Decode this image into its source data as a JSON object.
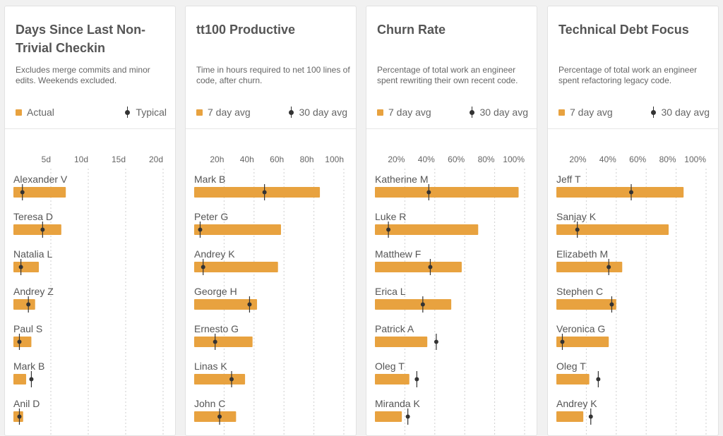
{
  "colors": {
    "bar": "#e8a23f",
    "marker": "#333333",
    "grid": "#cfcfcf",
    "tick_text": "#666666",
    "label_text": "#555555"
  },
  "cards": [
    {
      "title": "Days Since Last Non-Trivial Checkin",
      "description": "Excludes merge commits and minor edits. Weekends excluded.",
      "legend": {
        "bar": "Actual",
        "marker": "Typical"
      }
    },
    {
      "title": "tt100 Productive",
      "description": "Time in hours required to net 100 lines of code, after churn.",
      "legend": {
        "bar": "7 day avg",
        "marker": "30 day avg"
      }
    },
    {
      "title": "Churn Rate",
      "description": "Percentage of total work an engineer spent rewriting their own recent code.",
      "legend": {
        "bar": "7 day avg",
        "marker": "30 day avg"
      }
    },
    {
      "title": "Technical Debt Focus",
      "description": "Percentage of total work an engineer spent refactoring legacy code.",
      "legend": {
        "bar": "7 day avg",
        "marker": "30 day avg"
      }
    }
  ],
  "chart_data": [
    {
      "type": "bar",
      "title": "Days Since Last Non-Trivial Checkin",
      "xlim": [
        0,
        20
      ],
      "ticks": [
        5,
        10,
        15,
        20
      ],
      "tick_labels": [
        "5d",
        "10d",
        "15d",
        "20d"
      ],
      "categories": [
        "Alexander V",
        "Teresa D",
        "Natalia L",
        "Andrey Z",
        "Paul S",
        "Mark B",
        "Anil D"
      ],
      "series": [
        {
          "name": "Actual",
          "values": [
            7,
            6.4,
            3.4,
            2.9,
            2.4,
            1.7,
            1.3
          ]
        },
        {
          "name": "Typical",
          "values": [
            1.2,
            3.9,
            1.0,
            2.0,
            0.8,
            2.4,
            0.8
          ]
        }
      ]
    },
    {
      "type": "bar",
      "title": "tt100 Productive",
      "xlim": [
        0,
        100
      ],
      "ticks": [
        20,
        40,
        60,
        80,
        100
      ],
      "tick_labels": [
        "20h",
        "40h",
        "60h",
        "80h",
        "100h"
      ],
      "categories": [
        "Mark B",
        "Peter G",
        "Andrey K",
        "George H",
        "Ernesto G",
        "Linas K",
        "John C"
      ],
      "series": [
        {
          "name": "7 day avg",
          "values": [
            84,
            58,
            56,
            42,
            39,
            34,
            28
          ]
        },
        {
          "name": "30 day avg",
          "values": [
            47,
            4,
            6,
            37,
            14,
            25,
            17
          ]
        }
      ]
    },
    {
      "type": "bar",
      "title": "Churn Rate",
      "xlim": [
        0,
        100
      ],
      "ticks": [
        20,
        40,
        60,
        80,
        100
      ],
      "tick_labels": [
        "20%",
        "40%",
        "60%",
        "80%",
        "100%"
      ],
      "categories": [
        "Katherine M",
        "Luke R",
        "Matthew F",
        "Erica L",
        "Patrick A",
        "Oleg T",
        "Miranda K"
      ],
      "series": [
        {
          "name": "7 day avg",
          "values": [
            96,
            69,
            58,
            51,
            35,
            23,
            18
          ]
        },
        {
          "name": "30 day avg",
          "values": [
            36,
            9,
            37,
            32,
            41,
            28,
            22
          ]
        }
      ]
    },
    {
      "type": "bar",
      "title": "Technical Debt Focus",
      "xlim": [
        0,
        100
      ],
      "ticks": [
        20,
        40,
        60,
        80,
        100
      ],
      "tick_labels": [
        "20%",
        "40%",
        "60%",
        "80%",
        "100%"
      ],
      "categories": [
        "Jeff T",
        "Sanjay K",
        "Elizabeth M",
        "Stephen C",
        "Veronica G",
        "Oleg T",
        "Andrey K"
      ],
      "series": [
        {
          "name": "7 day avg",
          "values": [
            85,
            75,
            44,
            40,
            35,
            22,
            18
          ]
        },
        {
          "name": "30 day avg",
          "values": [
            50,
            14,
            35,
            37,
            4,
            28,
            23
          ]
        }
      ]
    }
  ]
}
